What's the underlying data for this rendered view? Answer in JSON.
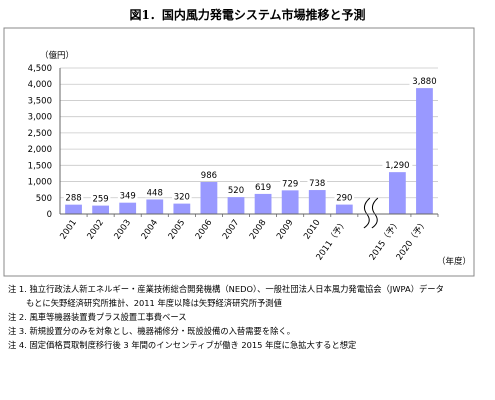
{
  "title": "図1．国内風力発電システム市場推移と予測",
  "chart_data": {
    "type": "bar",
    "unit_label": "（億円）",
    "xlabel": "（年度）",
    "categories": [
      "2001",
      "2002",
      "2003",
      "2004",
      "2005",
      "2006",
      "2007",
      "2008",
      "2009",
      "2010",
      "2011（予）",
      "2015（予）",
      "2020（予）"
    ],
    "values": [
      288,
      259,
      349,
      448,
      320,
      986,
      520,
      619,
      729,
      738,
      290,
      1290,
      3880
    ],
    "value_labels": [
      "288",
      "259",
      "349",
      "448",
      "320",
      "986",
      "520",
      "619",
      "729",
      "738",
      "290",
      "1,290",
      "3,880"
    ],
    "ylim": [
      0,
      4500
    ],
    "yticks": [
      "0",
      "500",
      "1,000",
      "1,500",
      "2,000",
      "2,500",
      "3,000",
      "3,500",
      "4,000",
      "4,500"
    ],
    "axis_break_after": "2011（予）",
    "grid": true,
    "bar_color": "#9999ff"
  },
  "notes": [
    {
      "label": "注 1.",
      "text": "独立行政法人新エネルギー・産業技術総合開発機構（NEDO）、一般社団法人日本風力発電協会（JWPA）データ"
    },
    {
      "label": "",
      "text": "もとに矢野経済研究所推計、2011 年度以降は矢野経済研究所予測値"
    },
    {
      "label": "注 2.",
      "text": "風車等機器装置費プラス設置工事費ベース"
    },
    {
      "label": "注 3.",
      "text": "新規設置分のみを対象とし、機器補修分・既設設備の入替需要を除く。"
    },
    {
      "label": "注 4.",
      "text": "固定価格買取制度移行後 3 年間のインセンティブが働き 2015 年度に急拡大すると想定"
    }
  ]
}
